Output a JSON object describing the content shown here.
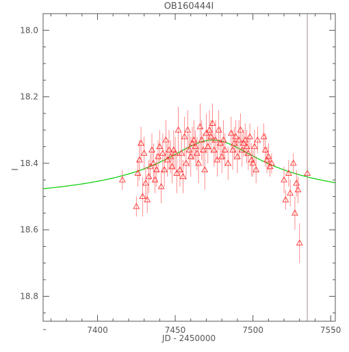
{
  "chart_data": {
    "type": "scatter",
    "title": "OB160444I",
    "xlabel": "JD - 2450000",
    "ylabel": "I",
    "xlim": [
      7365,
      7553
    ],
    "ylim": [
      18.875,
      17.95
    ],
    "xticks": [
      7400,
      7450,
      7500,
      7550
    ],
    "yticks": [
      18.0,
      18.2,
      18.4,
      18.6,
      18.8
    ],
    "yticklabels": [
      "18.0",
      "18.2",
      "18.4",
      "18.6",
      "18.8"
    ],
    "grid": false,
    "legend": "none",
    "colors": {
      "points": "#ff3333",
      "model": "#00cc00",
      "axes": "#555555",
      "vline": "#aa8888"
    },
    "vline_x": 7535,
    "model": {
      "t0": 7474,
      "peak": 18.33,
      "baseline": 18.53,
      "tau": 45
    },
    "series": [
      {
        "marker": "triangle",
        "x": [
          7416,
          7425,
          7426,
          7427,
          7428,
          7429,
          7430,
          7431,
          7432,
          7433,
          7434,
          7435,
          7436,
          7437,
          7438,
          7439,
          7440,
          7441,
          7442,
          7443,
          7444,
          7445,
          7446,
          7447,
          7448,
          7449,
          7450,
          7451,
          7452,
          7453,
          7454,
          7455,
          7456,
          7457,
          7458,
          7459,
          7460,
          7461,
          7462,
          7463,
          7464,
          7465,
          7466,
          7467,
          7468,
          7469,
          7470,
          7471,
          7472,
          7473,
          7474,
          7475,
          7476,
          7477,
          7478,
          7479,
          7480,
          7481,
          7482,
          7484,
          7486,
          7487,
          7488,
          7489,
          7490,
          7491,
          7492,
          7493,
          7494,
          7495,
          7496,
          7497,
          7498,
          7499,
          7500,
          7501,
          7502,
          7503,
          7507,
          7508,
          7509,
          7510,
          7511,
          7512,
          7520,
          7521,
          7523,
          7524,
          7526,
          7527,
          7528,
          7529,
          7530,
          7535
        ],
        "y": [
          18.45,
          18.53,
          18.43,
          18.39,
          18.34,
          18.5,
          18.37,
          18.46,
          18.51,
          18.44,
          18.41,
          18.36,
          18.4,
          18.45,
          18.42,
          18.38,
          18.35,
          18.47,
          18.37,
          18.42,
          18.33,
          18.39,
          18.36,
          18.38,
          18.41,
          18.36,
          18.37,
          18.43,
          18.3,
          18.42,
          18.37,
          18.44,
          18.32,
          18.4,
          18.3,
          18.36,
          18.38,
          18.34,
          18.33,
          18.35,
          18.37,
          18.4,
          18.29,
          18.33,
          18.36,
          18.42,
          18.31,
          18.35,
          18.3,
          18.32,
          18.28,
          18.36,
          18.33,
          18.39,
          18.3,
          18.34,
          18.38,
          18.33,
          18.36,
          18.4,
          18.31,
          18.36,
          18.34,
          18.32,
          18.38,
          18.33,
          18.3,
          18.36,
          18.34,
          18.33,
          18.35,
          18.37,
          18.32,
          18.39,
          18.4,
          18.35,
          18.42,
          18.33,
          18.32,
          18.36,
          18.39,
          18.38,
          18.41,
          18.4,
          18.45,
          18.51,
          18.43,
          18.49,
          18.4,
          18.55,
          18.46,
          18.48,
          18.64,
          18.43
        ],
        "err": [
          0.03,
          0.03,
          0.04,
          0.06,
          0.05,
          0.06,
          0.05,
          0.05,
          0.04,
          0.05,
          0.04,
          0.05,
          0.06,
          0.04,
          0.05,
          0.05,
          0.05,
          0.05,
          0.06,
          0.05,
          0.06,
          0.05,
          0.06,
          0.05,
          0.05,
          0.06,
          0.05,
          0.06,
          0.07,
          0.05,
          0.06,
          0.05,
          0.06,
          0.05,
          0.06,
          0.05,
          0.06,
          0.05,
          0.06,
          0.05,
          0.05,
          0.06,
          0.07,
          0.06,
          0.05,
          0.06,
          0.06,
          0.05,
          0.06,
          0.05,
          0.06,
          0.05,
          0.06,
          0.05,
          0.06,
          0.05,
          0.05,
          0.06,
          0.05,
          0.05,
          0.05,
          0.06,
          0.05,
          0.05,
          0.05,
          0.06,
          0.05,
          0.05,
          0.04,
          0.05,
          0.05,
          0.05,
          0.04,
          0.05,
          0.04,
          0.05,
          0.04,
          0.04,
          0.04,
          0.05,
          0.04,
          0.04,
          0.03,
          0.03,
          0.04,
          0.03,
          0.04,
          0.04,
          0.03,
          0.05,
          0.04,
          0.04,
          0.06,
          0.04
        ]
      }
    ]
  }
}
